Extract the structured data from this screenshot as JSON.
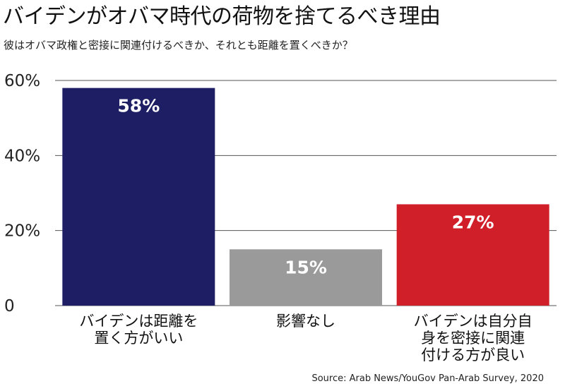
{
  "header": {
    "title": "バイデンがオバマ時代の荷物を捨てるべき理由",
    "subtitle": "彼はオバマ政権と密接に関連付けるべきか、それとも距離を置くべきか？"
  },
  "footer": {
    "source": "Source: Arab News/YouGov Pan-Arab Survey, 2020"
  },
  "chart_data": {
    "type": "bar",
    "title": "バイデンがオバマ時代の荷物を捨てるべき理由",
    "subtitle": "彼はオバマ政権と密接に関連付けるべきか、それとも距離を置くべきか？",
    "categories": [
      [
        "バイデンは距離を",
        "置く方がいい"
      ],
      [
        "影響なし"
      ],
      [
        "バイデンは自分自",
        "身を密接に関連",
        "付ける方が良い"
      ]
    ],
    "values": [
      58,
      15,
      27
    ],
    "value_labels": [
      "58%",
      "15%",
      "27%"
    ],
    "colors": [
      "#1e1e64",
      "#9a9a9a",
      "#d11f2a"
    ],
    "ylim": [
      0,
      60
    ],
    "y_ticks": [
      0,
      20,
      40,
      60
    ],
    "y_tick_labels": [
      "0",
      "20%",
      "40%",
      "60%"
    ],
    "grid": true,
    "legend": "none",
    "source": "Source: Arab News/YouGov Pan-Arab Survey, 2020"
  }
}
